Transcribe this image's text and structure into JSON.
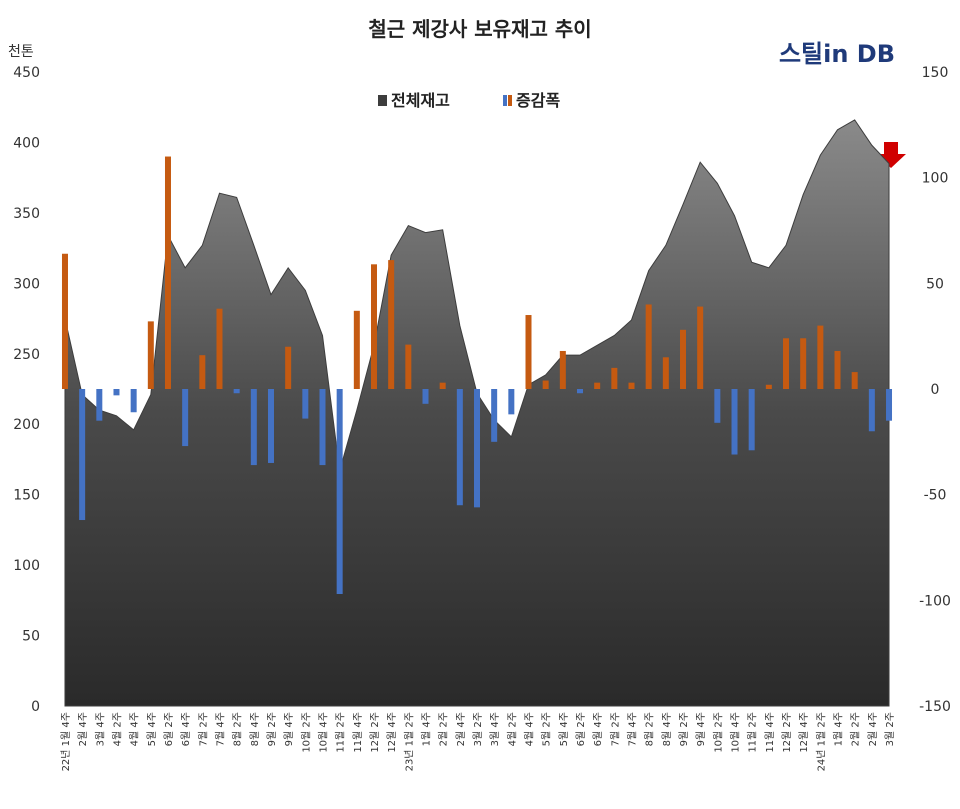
{
  "logo": "스틸in DB",
  "chart_data": {
    "type": "combo",
    "title": "철근 제강사 보유재고 추이",
    "y_unit": "천톤",
    "categories": [
      "22년 1월 4주",
      "2월 4주",
      "3월 4주",
      "4월 2주",
      "4월 4주",
      "5월 4주",
      "6월 2주",
      "6월 4주",
      "7월 2주",
      "7월 4주",
      "8월 2주",
      "8월 4주",
      "9월 2주",
      "9월 4주",
      "10월 2주",
      "10월 4주",
      "11월 2주",
      "11월 4주",
      "12월 2주",
      "12월 4주",
      "23년 1월 2주",
      "1월 4주",
      "2월 2주",
      "2월 4주",
      "3월 2주",
      "3월 4주",
      "4월 2주",
      "4월 4주",
      "5월 2주",
      "5월 4주",
      "6월 2주",
      "6월 4주",
      "7월 2주",
      "7월 4주",
      "8월 2주",
      "8월 4주",
      "9월 2주",
      "9월 4주",
      "10월 2주",
      "10월 4주",
      "11월 2주",
      "11월 4주",
      "12월 2주",
      "12월 4주",
      "24년 1월 2주",
      "1월 4주",
      "2월 2주",
      "2월 4주",
      "3월 2주"
    ],
    "ylim": [
      0,
      450
    ],
    "yticks": [
      0,
      50,
      100,
      150,
      200,
      250,
      300,
      350,
      400,
      450
    ],
    "y2lim": [
      -150,
      150
    ],
    "y2ticks": [
      -150,
      -100,
      -50,
      0,
      50,
      100,
      150
    ],
    "legend": "top",
    "series": [
      {
        "name": "전체재고",
        "type": "area",
        "color": "#3d3d3d",
        "values": [
          275,
          221,
          210,
          206,
          196,
          221,
          334,
          311,
          327,
          364,
          361,
          327,
          292,
          311,
          295,
          263,
          167,
          210,
          256,
          320,
          341,
          336,
          338,
          270,
          222,
          203,
          191,
          228,
          235,
          249,
          249,
          256,
          263,
          274,
          309,
          327,
          356,
          386,
          371,
          348,
          315,
          311,
          327,
          363,
          391,
          409,
          416,
          398,
          385
        ]
      },
      {
        "name": "증감폭",
        "type": "bar",
        "axis": "y2",
        "color": "#c55a11",
        "negative_color": "#4472c4",
        "values": [
          64,
          -62,
          -15,
          -3,
          -11,
          32,
          110,
          -27,
          16,
          38,
          -2,
          -36,
          -35,
          20,
          -14,
          -36,
          -97,
          37,
          59,
          61,
          21,
          -7,
          3,
          -55,
          -56,
          -25,
          -12,
          35,
          4,
          18,
          -2,
          3,
          10,
          3,
          40,
          15,
          28,
          39,
          -16,
          -31,
          -29,
          2,
          24,
          24,
          30,
          18,
          8,
          -20,
          -15
        ]
      }
    ]
  }
}
